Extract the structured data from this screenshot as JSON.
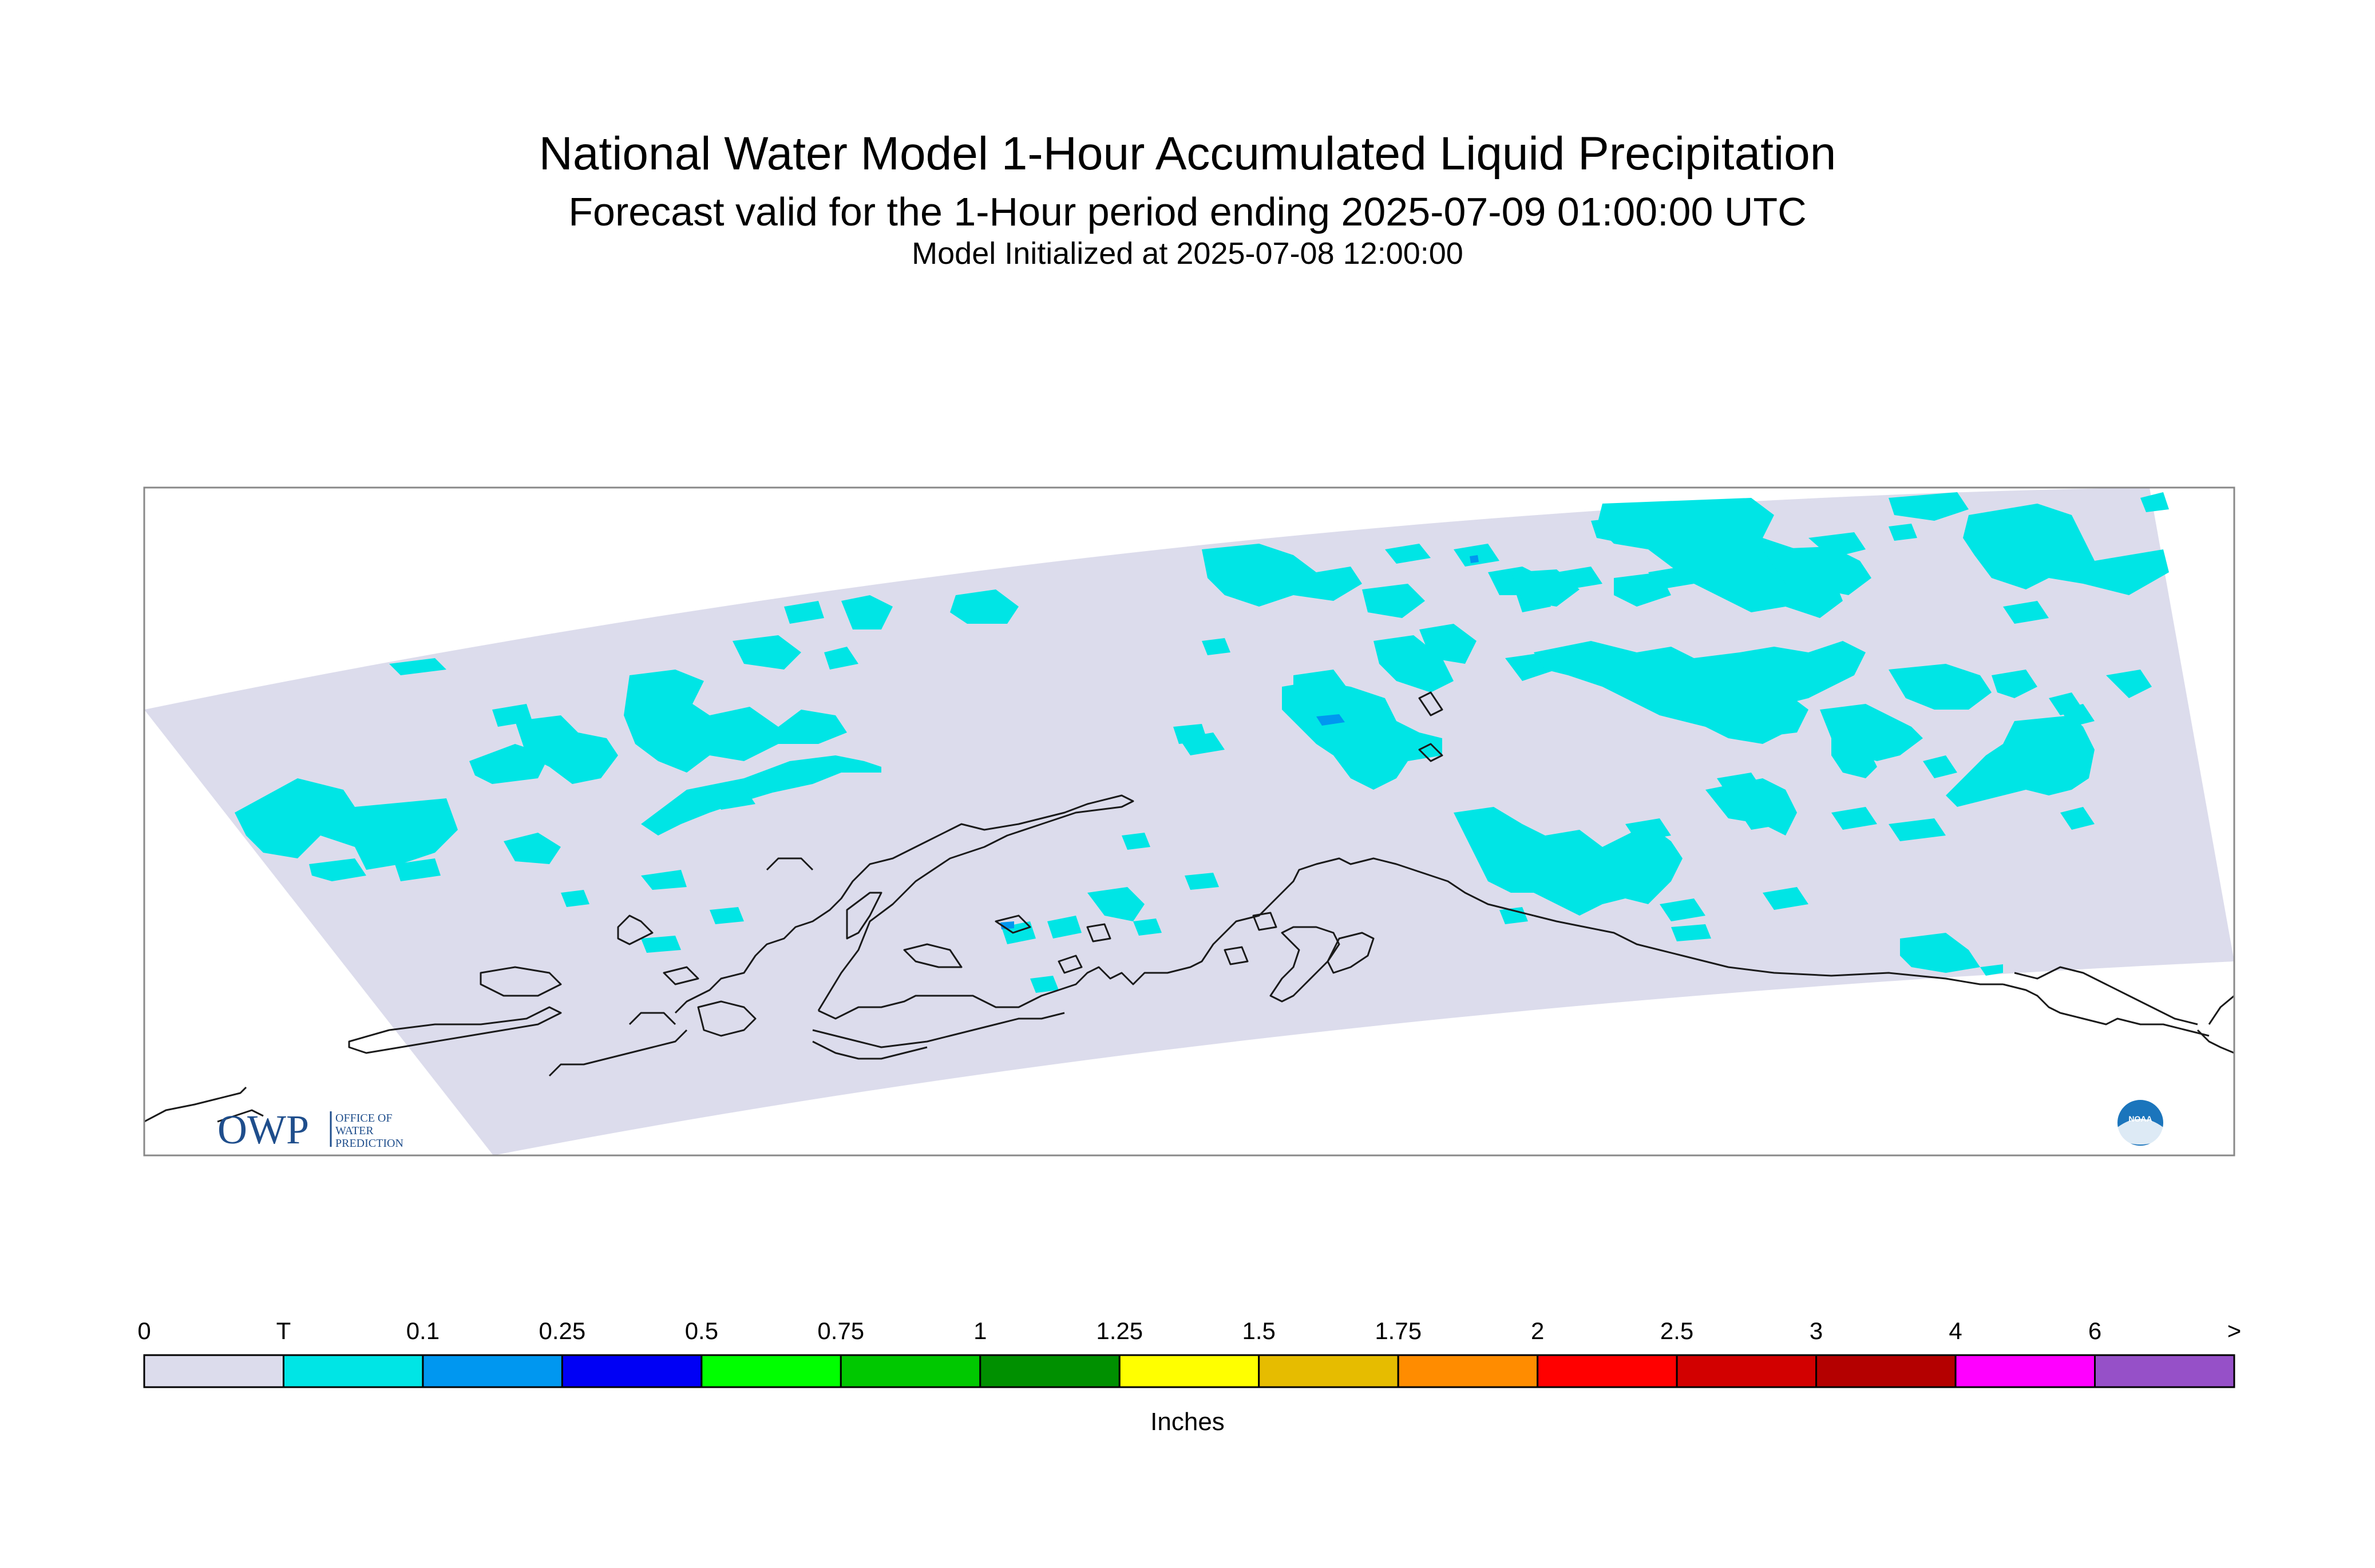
{
  "title": "National Water Model 1-Hour Accumulated Liquid Precipitation",
  "subtitle": "Forecast valid for the 1-Hour period ending 2025-07-09 01:00:00 UTC",
  "init_line": "Model Initialized at 2025-07-08 12:00:00",
  "legend": {
    "units": "Inches",
    "ticks": [
      "0",
      "T",
      "0.1",
      "0.25",
      "0.5",
      "0.75",
      "1",
      "1.25",
      "1.5",
      "1.75",
      "2",
      "2.5",
      "3",
      "4",
      "6",
      ">"
    ],
    "colors": [
      "#dcdcec",
      "#00e5e5",
      "#0097f0",
      "#0000f5",
      "#00ff00",
      "#00c800",
      "#009000",
      "#ffff00",
      "#e6bc00",
      "#ff8c00",
      "#ff0000",
      "#d20000",
      "#b40000",
      "#ff00ff",
      "#9650c8"
    ]
  },
  "logos": {
    "owp": {
      "mark": "OWP",
      "line1": "OFFICE OF",
      "line2": "WATER",
      "line3": "PREDICTION"
    },
    "noaa": {
      "mark": "NOAA"
    }
  },
  "map": {
    "domain_color": "#dcdcec",
    "precip_trace_color": "#00e5e5",
    "precip_light_color": "#0097f0",
    "coast_color": "#000000"
  }
}
